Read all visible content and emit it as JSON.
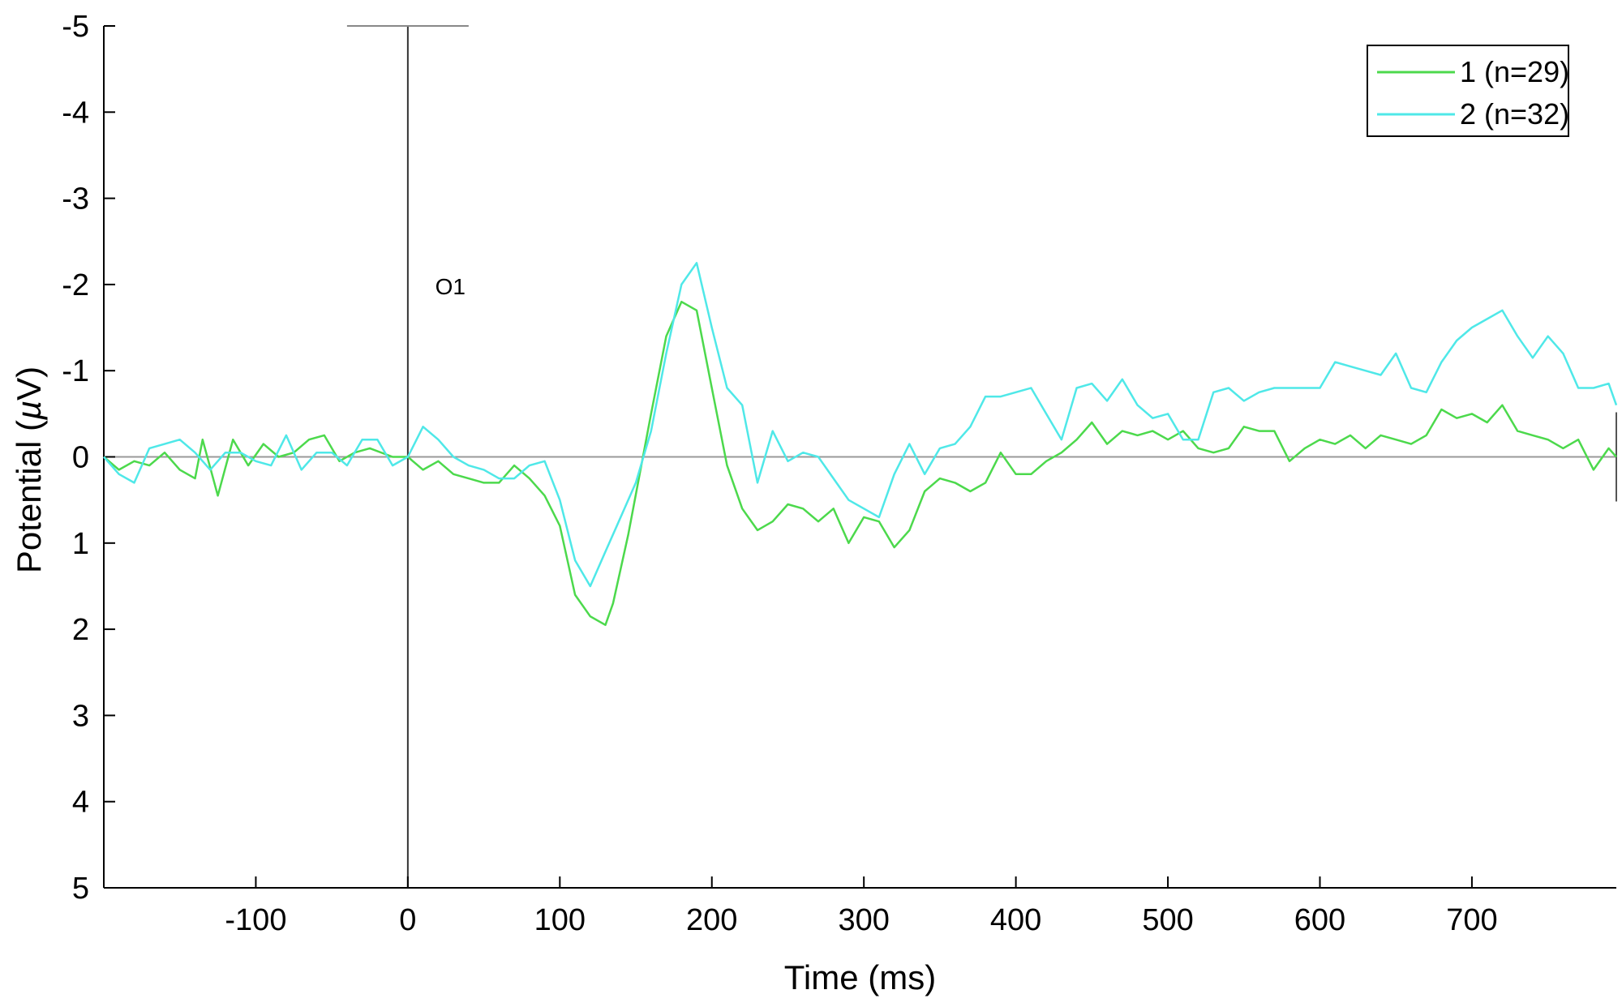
{
  "chart_data": {
    "type": "line",
    "title": "",
    "xlabel": "Time (ms)",
    "ylabel_prefix": "Potential (",
    "ylabel_symbol": "µ",
    "ylabel_suffix": "V)",
    "xlim": [
      -200,
      795
    ],
    "ylim": [
      -5,
      5
    ],
    "y_reversed": true,
    "xticks": [
      -100,
      0,
      100,
      200,
      300,
      400,
      500,
      600,
      700
    ],
    "yticks": [
      -5,
      -4,
      -3,
      -2,
      -1,
      0,
      1,
      2,
      3,
      4,
      5
    ],
    "grid": false,
    "legend_position": "top-right",
    "annotation": "O1",
    "colors": {
      "series1": "#4cd94c",
      "series2": "#4fe8e8",
      "zero_line": "#999999",
      "axis": "#000000"
    },
    "series": [
      {
        "name": "1  (n=29)",
        "x": [
          -200,
          -190,
          -180,
          -170,
          -160,
          -150,
          -140,
          -135,
          -125,
          -115,
          -105,
          -95,
          -85,
          -75,
          -65,
          -55,
          -45,
          -35,
          -25,
          -10,
          0,
          10,
          20,
          30,
          40,
          50,
          60,
          70,
          80,
          90,
          100,
          110,
          120,
          130,
          135,
          145,
          160,
          170,
          180,
          190,
          200,
          210,
          220,
          230,
          240,
          250,
          260,
          270,
          280,
          290,
          300,
          310,
          320,
          330,
          340,
          350,
          360,
          370,
          380,
          390,
          400,
          410,
          420,
          430,
          440,
          450,
          460,
          470,
          480,
          490,
          500,
          510,
          520,
          530,
          540,
          550,
          560,
          570,
          580,
          590,
          600,
          610,
          620,
          630,
          640,
          650,
          660,
          670,
          680,
          690,
          700,
          710,
          720,
          730,
          740,
          750,
          760,
          770,
          780,
          790,
          795
        ],
        "values": [
          0,
          0.15,
          0.05,
          0.1,
          -0.05,
          0.15,
          0.25,
          -0.2,
          0.45,
          -0.2,
          0.1,
          -0.15,
          0,
          -0.05,
          -0.2,
          -0.25,
          0.05,
          -0.05,
          -0.1,
          0,
          0,
          0.15,
          0.05,
          0.2,
          0.25,
          0.3,
          0.3,
          0.1,
          0.25,
          0.45,
          0.8,
          1.6,
          1.85,
          1.95,
          1.7,
          0.9,
          -0.5,
          -1.4,
          -1.8,
          -1.7,
          -0.8,
          0.1,
          0.6,
          0.85,
          0.75,
          0.55,
          0.6,
          0.75,
          0.6,
          1.0,
          0.7,
          0.75,
          1.05,
          0.85,
          0.4,
          0.25,
          0.3,
          0.4,
          0.3,
          -0.05,
          0.2,
          0.2,
          0.05,
          -0.05,
          -0.2,
          -0.4,
          -0.15,
          -0.3,
          -0.25,
          -0.3,
          -0.2,
          -0.3,
          -0.1,
          -0.05,
          -0.1,
          -0.35,
          -0.3,
          -0.3,
          0.05,
          -0.1,
          -0.2,
          -0.15,
          -0.25,
          -0.1,
          -0.25,
          -0.2,
          -0.15,
          -0.25,
          -0.55,
          -0.45,
          -0.5,
          -0.4,
          -0.6,
          -0.3,
          -0.25,
          -0.2,
          -0.1,
          -0.2,
          0.15,
          -0.1,
          0
        ]
      },
      {
        "name": "2  (n=32)",
        "x": [
          -200,
          -190,
          -180,
          -170,
          -160,
          -150,
          -140,
          -130,
          -120,
          -110,
          -100,
          -90,
          -80,
          -70,
          -60,
          -50,
          -40,
          -30,
          -20,
          -10,
          0,
          10,
          20,
          30,
          40,
          50,
          60,
          70,
          80,
          90,
          100,
          110,
          120,
          130,
          140,
          150,
          160,
          170,
          180,
          190,
          200,
          210,
          220,
          230,
          240,
          250,
          260,
          270,
          280,
          290,
          300,
          310,
          320,
          330,
          340,
          350,
          360,
          370,
          380,
          390,
          400,
          410,
          420,
          430,
          440,
          450,
          460,
          470,
          480,
          490,
          500,
          510,
          520,
          530,
          540,
          550,
          560,
          570,
          580,
          590,
          600,
          610,
          620,
          630,
          640,
          650,
          660,
          670,
          680,
          690,
          700,
          710,
          720,
          730,
          740,
          750,
          760,
          770,
          780,
          790,
          795
        ],
        "values": [
          0,
          0.2,
          0.3,
          -0.1,
          -0.15,
          -0.2,
          -0.05,
          0.15,
          -0.05,
          -0.05,
          0.05,
          0.1,
          -0.25,
          0.15,
          -0.05,
          -0.05,
          0.1,
          -0.2,
          -0.2,
          0.1,
          0,
          -0.35,
          -0.2,
          0,
          0.1,
          0.15,
          0.25,
          0.25,
          0.1,
          0.05,
          0.5,
          1.2,
          1.5,
          1.1,
          0.7,
          0.3,
          -0.3,
          -1.2,
          -2.0,
          -2.25,
          -1.5,
          -0.8,
          -0.6,
          0.3,
          -0.3,
          0.05,
          -0.05,
          0,
          0.25,
          0.5,
          0.6,
          0.7,
          0.2,
          -0.15,
          0.2,
          -0.1,
          -0.15,
          -0.35,
          -0.7,
          -0.7,
          -0.75,
          -0.8,
          -0.5,
          -0.2,
          -0.8,
          -0.85,
          -0.65,
          -0.9,
          -0.6,
          -0.45,
          -0.5,
          -0.2,
          -0.2,
          -0.75,
          -0.8,
          -0.65,
          -0.75,
          -0.8,
          -0.8,
          -0.8,
          -0.8,
          -1.1,
          -1.05,
          -1.0,
          -0.95,
          -1.2,
          -0.8,
          -0.75,
          -1.1,
          -1.35,
          -1.5,
          -1.6,
          -1.7,
          -1.4,
          -1.15,
          -1.4,
          -1.2,
          -0.8,
          -0.8,
          -0.85,
          -0.6
        ]
      }
    ]
  }
}
